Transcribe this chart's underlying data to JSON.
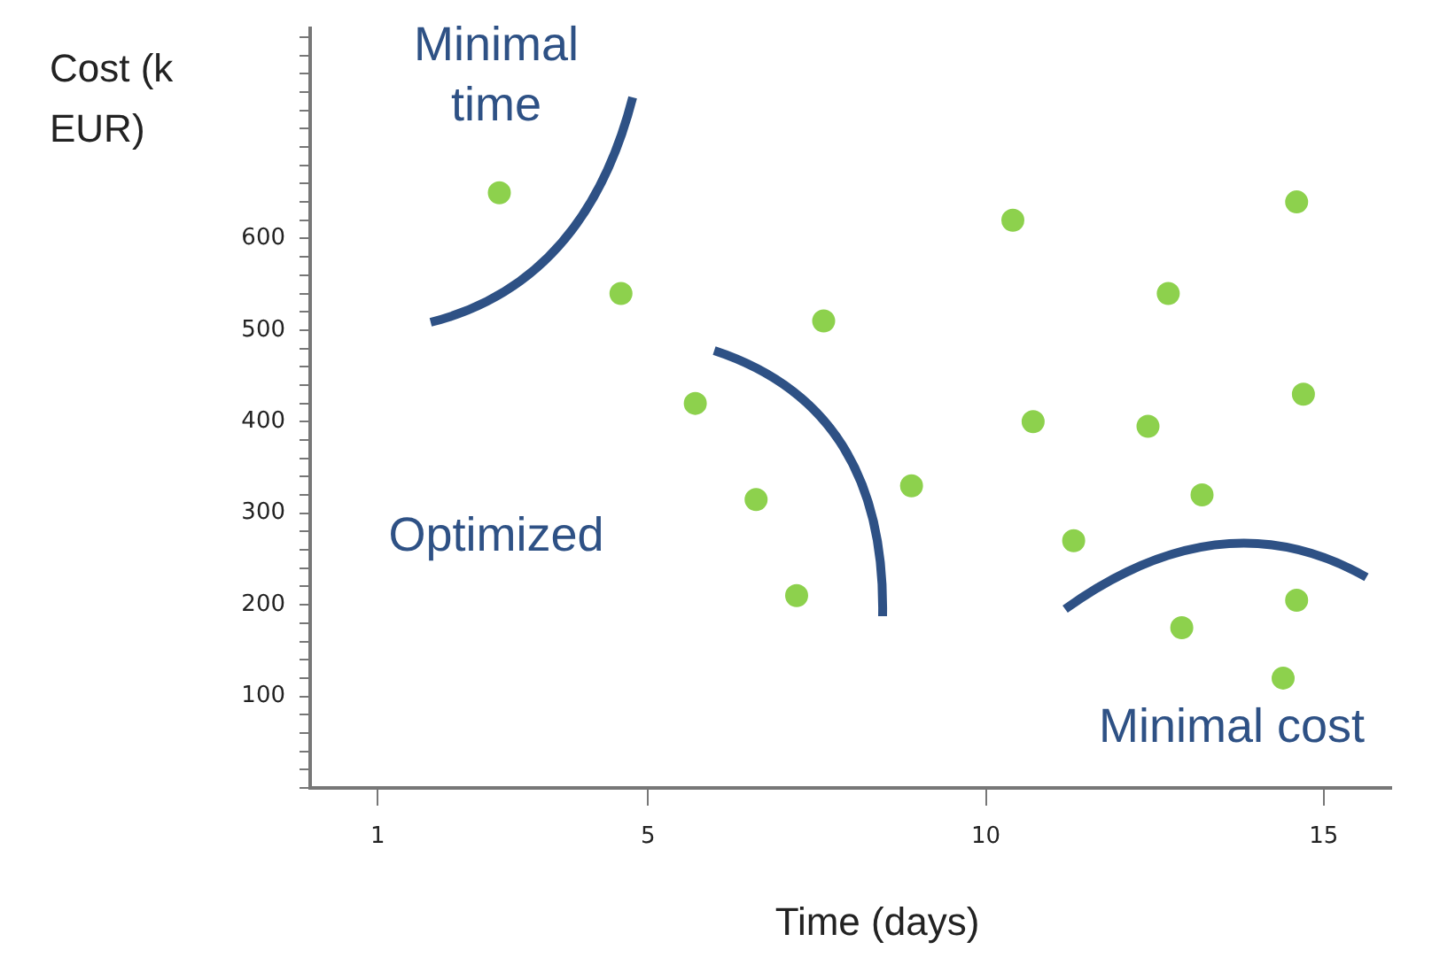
{
  "chart_data": {
    "type": "scatter",
    "xlabel": "Time (days)",
    "ylabel": "Cost (k EUR)",
    "annotations": [
      "Minimal time",
      "Optimized",
      "Minimal cost"
    ],
    "x": [
      2.8,
      4.6,
      5.7,
      6.6,
      7.2,
      7.6,
      8.9,
      10.4,
      10.7,
      11.3,
      12.7,
      12.4,
      13.2,
      12.9,
      14.6,
      14.7,
      14.6,
      14.4
    ],
    "values": [
      650,
      540,
      420,
      315,
      210,
      510,
      330,
      620,
      400,
      270,
      540,
      395,
      320,
      175,
      640,
      430,
      205,
      120
    ],
    "color": "#8dd14d",
    "marker": "circle",
    "grid": false,
    "legend": false,
    "xlim": [
      0,
      16
    ],
    "xticks": [
      1,
      5,
      10,
      15
    ],
    "ylim": [
      0,
      830
    ],
    "yticks": [
      {
        "value": 0,
        "label": null
      },
      {
        "value": 20,
        "label": null
      },
      {
        "value": 40,
        "label": null
      },
      {
        "value": 60,
        "label": null
      },
      {
        "value": 80,
        "label": null
      },
      100,
      {
        "value": 120,
        "label": null
      },
      {
        "value": 140,
        "label": null
      },
      {
        "value": 160,
        "label": null
      },
      {
        "value": 180,
        "label": null
      },
      200,
      {
        "value": 220,
        "label": null
      },
      {
        "value": 240,
        "label": null
      },
      {
        "value": 260,
        "label": null
      },
      {
        "value": 280,
        "label": null
      },
      300,
      {
        "value": 320,
        "label": null
      },
      {
        "value": 340,
        "label": null
      },
      {
        "value": 360,
        "label": null
      },
      {
        "value": 380,
        "label": null
      },
      400,
      {
        "value": 420,
        "label": null
      },
      {
        "value": 440,
        "label": null
      },
      {
        "value": 460,
        "label": null
      },
      {
        "value": 480,
        "label": null
      },
      500,
      {
        "value": 520,
        "label": null
      },
      {
        "value": 540,
        "label": null
      },
      {
        "value": 560,
        "label": null
      },
      {
        "value": 580,
        "label": null
      },
      600,
      {
        "value": 620,
        "label": null
      },
      {
        "value": 640,
        "label": null
      },
      {
        "value": 660,
        "label": null
      },
      {
        "value": 680,
        "label": null
      },
      {
        "value": 700,
        "label": null
      },
      {
        "value": 720,
        "label": null
      },
      {
        "value": 740,
        "label": null
      },
      {
        "value": 760,
        "label": null
      },
      {
        "value": 780,
        "label": null
      },
      {
        "value": 800,
        "label": null
      },
      {
        "value": 820,
        "label": null
      }
    ]
  }
}
